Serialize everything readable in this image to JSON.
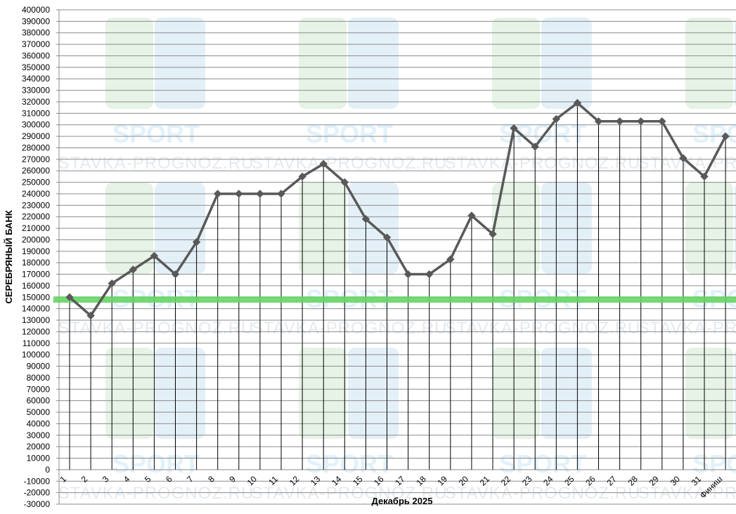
{
  "chart_data": {
    "type": "line",
    "title": "",
    "xlabel": "Декабрь 2025",
    "ylabel": "СЕРЕБРЯНЫЙ БАНК",
    "ylim": [
      -30000,
      400000
    ],
    "ytick_step": 10000,
    "grid": "horizontal and vertical",
    "categories": [
      "1",
      "2",
      "3",
      "4",
      "5",
      "6",
      "7",
      "8",
      "9",
      "10",
      "11",
      "12",
      "13",
      "14",
      "15",
      "16",
      "17",
      "18",
      "19",
      "20",
      "21",
      "22",
      "23",
      "24",
      "25",
      "26",
      "27",
      "28",
      "29",
      "30",
      "31",
      "Финиш"
    ],
    "series": [
      {
        "color": "#595959",
        "marker": "diamond",
        "values": [
          150000,
          134000,
          162000,
          174000,
          186000,
          170000,
          198000,
          240000,
          240000,
          240000,
          240000,
          255000,
          266000,
          250000,
          218000,
          202000,
          170000,
          170000,
          183000,
          221000,
          205000,
          297000,
          281000,
          305000,
          319000,
          303000,
          303000,
          303000,
          303000,
          271000,
          255000,
          290000
        ]
      }
    ],
    "reference_line": {
      "value": 148000,
      "color": "#66d466"
    },
    "watermark": {
      "text": "STAVKA-PROGNOZ.RU",
      "brand": "SPORT"
    }
  }
}
